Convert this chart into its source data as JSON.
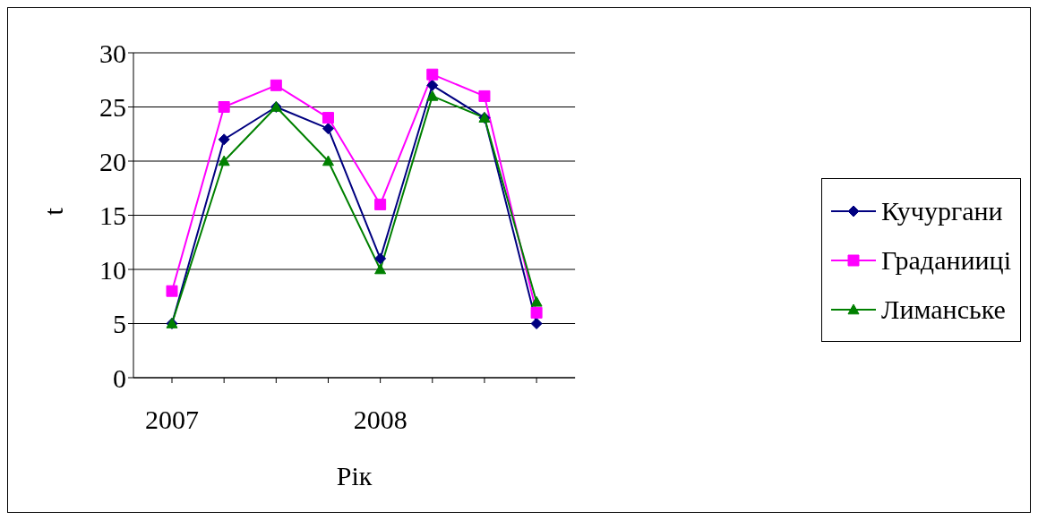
{
  "chart_data": {
    "type": "line",
    "xlabel": "Рік",
    "ylabel": "t",
    "categories": [
      "2007",
      null,
      null,
      null,
      "2008",
      null,
      null,
      null
    ],
    "series": [
      {
        "name": "Кучургани",
        "color": "#000080",
        "marker": "diamond",
        "values": [
          5,
          22,
          25,
          23,
          11,
          27,
          24,
          5
        ]
      },
      {
        "name": "Граданииці",
        "color": "#ff00ff",
        "marker": "square",
        "values": [
          8,
          25,
          27,
          24,
          16,
          28,
          26,
          6
        ]
      },
      {
        "name": "Лиманське",
        "color": "#008000",
        "marker": "triangle",
        "values": [
          5,
          20,
          25,
          20,
          10,
          26,
          24,
          7
        ]
      }
    ],
    "ylim": [
      0,
      30
    ],
    "yticks": [
      0,
      5,
      10,
      15,
      20,
      25,
      30
    ],
    "grid": "y",
    "legend": "right",
    "line_style": "solid"
  }
}
